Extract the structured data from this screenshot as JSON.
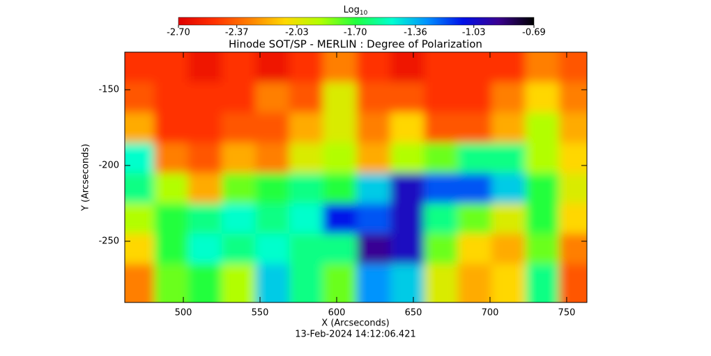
{
  "chart_data": {
    "type": "heatmap",
    "title": "Hinode SOT/SP - MERLIN : Degree of Polarization",
    "xlabel": "X (Arcseconds)",
    "ylabel": "Y (Arcseconds)",
    "footer": "13-Feb-2024 14:12:06.421",
    "colorbar_label": "Log",
    "colorbar_label_sub": "10",
    "clim": [
      -2.7,
      -0.69
    ],
    "cticks": [
      {
        "value": -2.7,
        "label": "-2.70"
      },
      {
        "value": -2.37,
        "label": "-2.37"
      },
      {
        "value": -2.03,
        "label": "-2.03"
      },
      {
        "value": -1.7,
        "label": "-1.70"
      },
      {
        "value": -1.36,
        "label": "-1.36"
      },
      {
        "value": -1.03,
        "label": "-1.03"
      },
      {
        "value": -0.69,
        "label": "-0.69"
      }
    ],
    "colormap": [
      "#e00000",
      "#ff3000",
      "#ff8000",
      "#ffd800",
      "#b0ff00",
      "#20ff40",
      "#00ffd0",
      "#0090ff",
      "#0010e8",
      "#3a0090",
      "#000000"
    ],
    "xlim": [
      461.8,
      763.2
    ],
    "ylim": [
      -290.4,
      -125.2
    ],
    "xticks": [
      500,
      550,
      600,
      650,
      700,
      750
    ],
    "yticks": [
      -150,
      -200,
      -250
    ],
    "x": [
      470,
      492,
      514,
      536,
      558,
      580,
      602,
      624,
      646,
      668,
      690,
      712,
      734,
      756
    ],
    "y": [
      -135,
      -155,
      -175,
      -195,
      -215,
      -235,
      -255,
      -275
    ],
    "z": [
      [
        -2.5,
        -2.5,
        -2.6,
        -2.5,
        -2.6,
        -2.5,
        -2.3,
        -2.5,
        -2.6,
        -2.5,
        -2.5,
        -2.5,
        -2.3,
        -2.4
      ],
      [
        -2.4,
        -2.5,
        -2.5,
        -2.5,
        -2.3,
        -2.4,
        -2.0,
        -2.4,
        -2.4,
        -2.5,
        -2.5,
        -2.3,
        -2.1,
        -2.3
      ],
      [
        -2.2,
        -2.5,
        -2.5,
        -2.4,
        -2.4,
        -2.2,
        -2.0,
        -2.3,
        -2.1,
        -2.4,
        -2.4,
        -2.2,
        -1.9,
        -2.2
      ],
      [
        -1.5,
        -2.3,
        -2.4,
        -2.2,
        -2.3,
        -2.0,
        -1.9,
        -2.2,
        -1.9,
        -1.8,
        -1.6,
        -1.6,
        -1.9,
        -2.1
      ],
      [
        -1.6,
        -1.9,
        -2.2,
        -1.8,
        -1.7,
        -1.6,
        -1.7,
        -1.4,
        -1.0,
        -1.2,
        -1.2,
        -1.4,
        -1.7,
        -2.0
      ],
      [
        -1.9,
        -1.7,
        -1.6,
        -1.5,
        -1.6,
        -1.5,
        -1.1,
        -1.2,
        -1.0,
        -1.6,
        -1.8,
        -2.0,
        -1.7,
        -2.1
      ],
      [
        -2.1,
        -1.7,
        -1.5,
        -1.6,
        -1.5,
        -1.6,
        -1.6,
        -0.9,
        -1.0,
        -1.8,
        -2.1,
        -2.2,
        -1.8,
        -2.3
      ],
      [
        -2.3,
        -1.8,
        -1.7,
        -1.9,
        -1.4,
        -1.6,
        -1.8,
        -1.3,
        -1.4,
        -2.0,
        -2.2,
        -2.1,
        -1.6,
        -2.4
      ]
    ]
  }
}
